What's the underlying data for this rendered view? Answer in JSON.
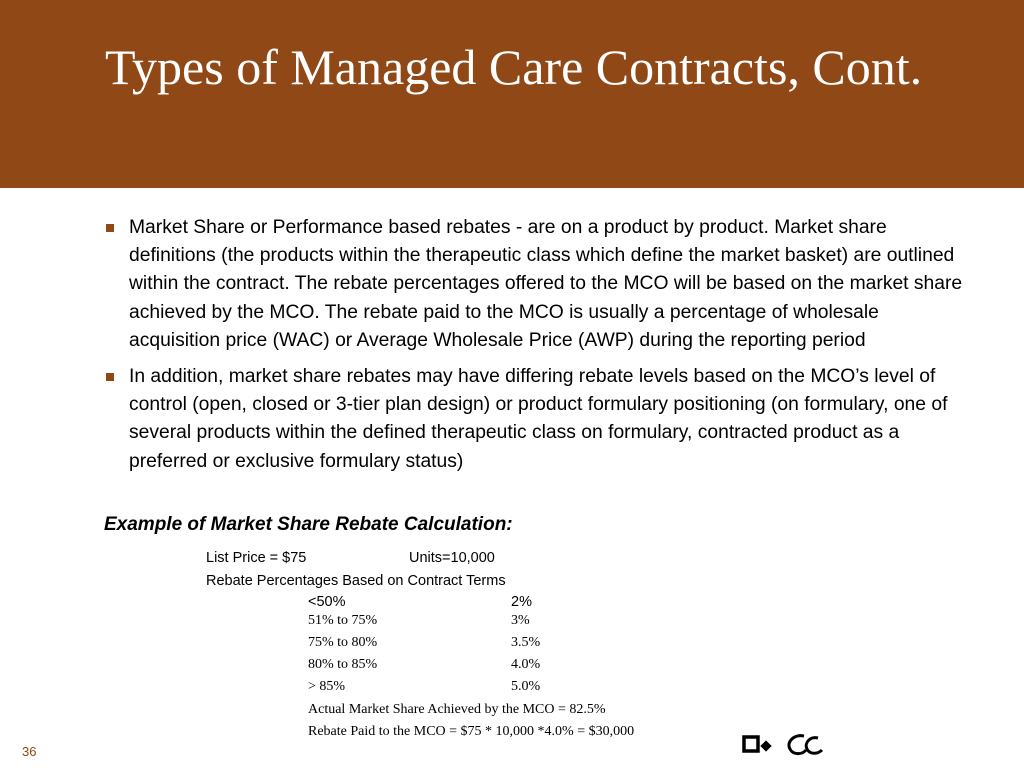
{
  "slide": {
    "title": "Types of Managed Care Contracts, Cont.",
    "bullets": [
      "Market Share or Performance based rebates - are on a product by product. Market share definitions (the products within the therapeutic class which define the market basket) are outlined within the contract. The rebate percentages offered to the MCO will be based on the market share achieved by the MCO.  The rebate paid to the MCO is usually a percentage of wholesale acquisition price (WAC) or Average Wholesale Price (AWP) during the reporting period",
      "In addition, market share rebates may have differing rebate levels based on the MCO’s level of control (open, closed or 3-tier plan design) or product formulary positioning (on formulary, one of several products within the defined therapeutic class on formulary, contracted product as a preferred or exclusive formulary status)"
    ],
    "example": {
      "heading": "Example of Market Share Rebate Calculation:",
      "list_price": "List Price = $75",
      "units": "Units=10,000",
      "rebate_terms_label": "Rebate Percentages Based on Contract Terms",
      "tiers": [
        {
          "range": "<50%",
          "rate": "2%"
        },
        {
          "range": "51% to 75%",
          "rate": "3%"
        },
        {
          "range": "75% to 80%",
          "rate": "3.5%"
        },
        {
          "range": "80%  to 85%",
          "rate": "4.0%"
        },
        {
          "range": "> 85%",
          "rate": "5.0%"
        }
      ],
      "actual_share": "Actual Market Share Achieved by the MCO = 82.5%",
      "rebate_paid": "Rebate Paid to the MCO = $75 * 10,000 *4.0% = $30,000"
    },
    "page_number": "36",
    "logo_icon": "pwc-logo",
    "colors": {
      "brand": "#8f4816",
      "title_text": "#ffffff",
      "body_text": "#000000"
    }
  }
}
